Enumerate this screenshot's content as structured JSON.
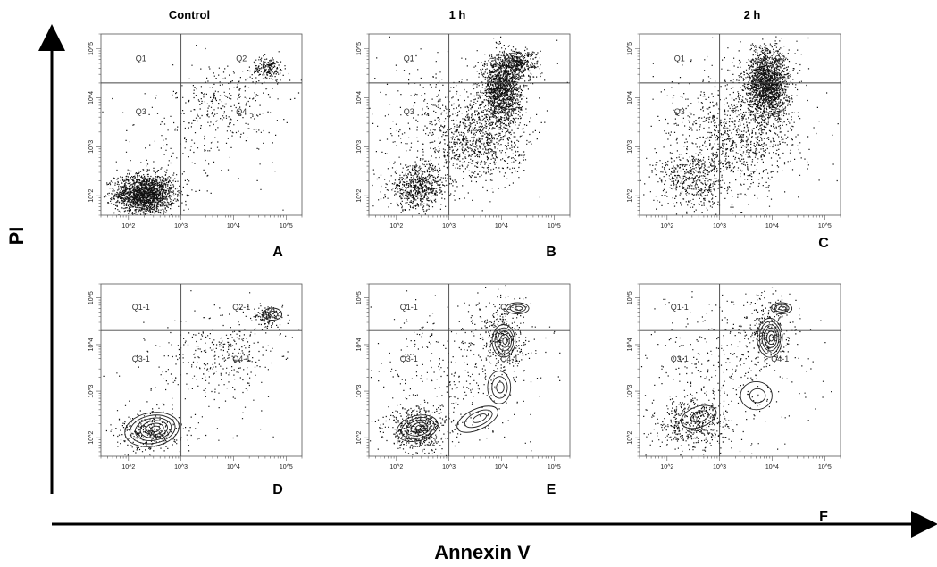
{
  "figure": {
    "column_titles": [
      "Control",
      "1 h",
      "2 h"
    ],
    "x_axis_label": "Annexin V",
    "y_axis_label": "PI",
    "colors": {
      "ink": "#000000",
      "frame": "#555555",
      "dots": "#111111"
    }
  },
  "chart_data": [
    {
      "panel": "A",
      "type": "scatter",
      "column": "Control",
      "plot": "dot",
      "xscale": "log",
      "yscale": "log",
      "xlim": [
        30,
        200000
      ],
      "ylim": [
        40,
        200000
      ],
      "gate": {
        "x": 1000,
        "y": 20000
      },
      "quadrants": [
        "Q1",
        "Q2",
        "Q3",
        "Q4"
      ],
      "x_ticks": [
        "10^2",
        "10^3",
        "10^4",
        "10^5"
      ],
      "y_ticks": [
        "10^2",
        "10^3",
        "10^4",
        "10^5"
      ],
      "populations": [
        {
          "x": 200,
          "y": 110,
          "sx": 0.28,
          "sy": 0.2,
          "n": 1800
        },
        {
          "x": 7000,
          "y": 7000,
          "sx": 0.5,
          "sy": 0.45,
          "n": 300
        },
        {
          "x": 45000,
          "y": 40000,
          "sx": 0.15,
          "sy": 0.12,
          "n": 200
        },
        {
          "x": 800,
          "y": 600,
          "sx": 0.8,
          "sy": 0.8,
          "n": 150
        }
      ]
    },
    {
      "panel": "B",
      "type": "scatter",
      "column": "1 h",
      "plot": "dot",
      "xscale": "log",
      "yscale": "log",
      "xlim": [
        30,
        200000
      ],
      "ylim": [
        40,
        200000
      ],
      "gate": {
        "x": 1000,
        "y": 20000
      },
      "quadrants": [
        "Q1",
        "Q2",
        "Q3",
        "Q4"
      ],
      "x_ticks": [
        "10^2",
        "10^3",
        "10^4",
        "10^5"
      ],
      "y_ticks": [
        "10^2",
        "10^3",
        "10^4",
        "10^5"
      ],
      "populations": [
        {
          "x": 250,
          "y": 150,
          "sx": 0.28,
          "sy": 0.22,
          "n": 700
        },
        {
          "x": 10000,
          "y": 15000,
          "sx": 0.18,
          "sy": 0.35,
          "n": 1400
        },
        {
          "x": 3000,
          "y": 1500,
          "sx": 0.45,
          "sy": 0.45,
          "n": 800
        },
        {
          "x": 20000,
          "y": 50000,
          "sx": 0.2,
          "sy": 0.15,
          "n": 400
        },
        {
          "x": 1500,
          "y": 3000,
          "sx": 0.8,
          "sy": 0.8,
          "n": 400
        }
      ]
    },
    {
      "panel": "C",
      "type": "scatter",
      "column": "2 h",
      "plot": "dot",
      "xscale": "log",
      "yscale": "log",
      "xlim": [
        30,
        200000
      ],
      "ylim": [
        40,
        200000
      ],
      "gate": {
        "x": 1000,
        "y": 20000
      },
      "quadrants": [
        "Q1",
        "Q2",
        "Q3",
        "Q4"
      ],
      "x_ticks": [
        "10^2",
        "10^3",
        "10^4",
        "10^5"
      ],
      "y_ticks": [
        "10^2",
        "10^3",
        "10^4",
        "10^5"
      ],
      "populations": [
        {
          "x": 300,
          "y": 200,
          "sx": 0.35,
          "sy": 0.3,
          "n": 500
        },
        {
          "x": 8000,
          "y": 20000,
          "sx": 0.2,
          "sy": 0.35,
          "n": 1800
        },
        {
          "x": 2500,
          "y": 1500,
          "sx": 0.5,
          "sy": 0.5,
          "n": 700
        },
        {
          "x": 1500,
          "y": 3000,
          "sx": 0.8,
          "sy": 0.8,
          "n": 400
        }
      ]
    },
    {
      "panel": "D",
      "type": "scatter",
      "column": "Control",
      "plot": "contour",
      "xscale": "log",
      "yscale": "log",
      "xlim": [
        30,
        200000
      ],
      "ylim": [
        40,
        200000
      ],
      "gate": {
        "x": 1000,
        "y": 20000
      },
      "quadrants": [
        "Q1-1",
        "Q2-1",
        "Q3-1",
        "Q4-1"
      ],
      "x_ticks": [
        "10^2",
        "10^3",
        "10^4",
        "10^5"
      ],
      "y_ticks": [
        "10^2",
        "10^3",
        "10^4",
        "10^5"
      ],
      "populations": [
        {
          "x": 250,
          "y": 130,
          "sx": 0.3,
          "sy": 0.2,
          "n": 300
        },
        {
          "x": 7000,
          "y": 7000,
          "sx": 0.5,
          "sy": 0.45,
          "n": 300
        },
        {
          "x": 45000,
          "y": 40000,
          "sx": 0.15,
          "sy": 0.12,
          "n": 150
        },
        {
          "x": 800,
          "y": 600,
          "sx": 0.8,
          "sy": 0.8,
          "n": 120
        }
      ],
      "contours": [
        {
          "x": 280,
          "y": 150,
          "rx": 0.52,
          "ry": 0.36,
          "levels": 6,
          "tilt": 10
        },
        {
          "x": 55000,
          "y": 45000,
          "rx": 0.18,
          "ry": 0.13,
          "levels": 2,
          "tilt": 0
        }
      ]
    },
    {
      "panel": "E",
      "type": "scatter",
      "column": "1 h",
      "plot": "contour",
      "xscale": "log",
      "yscale": "log",
      "xlim": [
        30,
        200000
      ],
      "ylim": [
        40,
        200000
      ],
      "gate": {
        "x": 1000,
        "y": 20000
      },
      "quadrants": [
        "Q1-1",
        "Q2-1",
        "Q3-1",
        "Q4-1"
      ],
      "x_ticks": [
        "10^2",
        "10^3",
        "10^4",
        "10^5"
      ],
      "y_ticks": [
        "10^2",
        "10^3",
        "10^4",
        "10^5"
      ],
      "populations": [
        {
          "x": 250,
          "y": 150,
          "sx": 0.3,
          "sy": 0.25,
          "n": 500
        },
        {
          "x": 10000,
          "y": 15000,
          "sx": 0.25,
          "sy": 0.4,
          "n": 300
        },
        {
          "x": 1500,
          "y": 3000,
          "sx": 0.8,
          "sy": 0.8,
          "n": 400
        }
      ],
      "contours": [
        {
          "x": 250,
          "y": 160,
          "rx": 0.4,
          "ry": 0.27,
          "levels": 5,
          "tilt": 15
        },
        {
          "x": 3500,
          "y": 250,
          "rx": 0.42,
          "ry": 0.22,
          "levels": 3,
          "tilt": 25
        },
        {
          "x": 9000,
          "y": 1200,
          "rx": 0.22,
          "ry": 0.35,
          "levels": 3,
          "tilt": 0
        },
        {
          "x": 11000,
          "y": 12000,
          "rx": 0.22,
          "ry": 0.35,
          "levels": 5,
          "tilt": 0
        },
        {
          "x": 20000,
          "y": 60000,
          "rx": 0.22,
          "ry": 0.12,
          "levels": 3,
          "tilt": 0
        }
      ]
    },
    {
      "panel": "F",
      "type": "scatter",
      "column": "2 h",
      "plot": "contour",
      "xscale": "log",
      "yscale": "log",
      "xlim": [
        30,
        200000
      ],
      "ylim": [
        40,
        200000
      ],
      "gate": {
        "x": 1000,
        "y": 20000
      },
      "quadrants": [
        "Q1-1",
        "Q2-1",
        "Q3-1",
        "Q4-1"
      ],
      "x_ticks": [
        "10^2",
        "10^3",
        "10^4",
        "10^5"
      ],
      "y_ticks": [
        "10^2",
        "10^3",
        "10^4",
        "10^5"
      ],
      "populations": [
        {
          "x": 300,
          "y": 200,
          "sx": 0.35,
          "sy": 0.3,
          "n": 500
        },
        {
          "x": 8000,
          "y": 20000,
          "sx": 0.25,
          "sy": 0.4,
          "n": 250
        },
        {
          "x": 1500,
          "y": 3000,
          "sx": 0.8,
          "sy": 0.8,
          "n": 400
        }
      ],
      "contours": [
        {
          "x": 400,
          "y": 280,
          "rx": 0.35,
          "ry": 0.22,
          "levels": 2,
          "tilt": 20
        },
        {
          "x": 5000,
          "y": 800,
          "rx": 0.3,
          "ry": 0.3,
          "levels": 2,
          "tilt": 0
        },
        {
          "x": 9000,
          "y": 14000,
          "rx": 0.24,
          "ry": 0.42,
          "levels": 6,
          "tilt": 0
        },
        {
          "x": 15000,
          "y": 60000,
          "rx": 0.2,
          "ry": 0.12,
          "levels": 3,
          "tilt": 0
        }
      ]
    }
  ]
}
